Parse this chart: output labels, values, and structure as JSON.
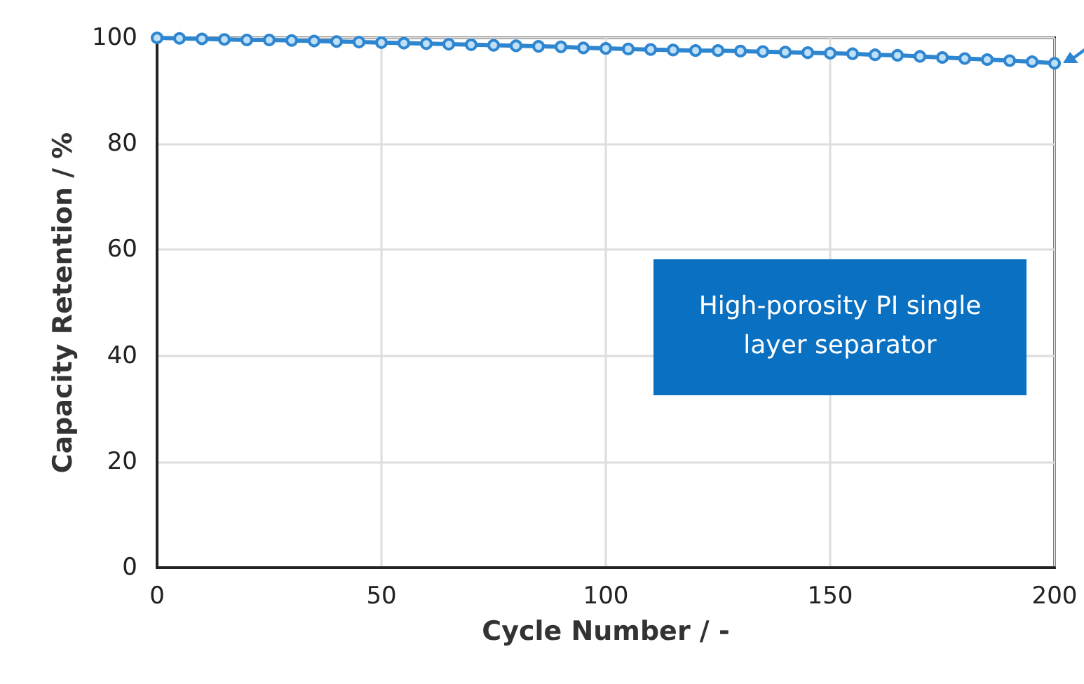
{
  "chart_data": {
    "type": "line",
    "xlabel": "Cycle Number / -",
    "ylabel": "Capacity Retention / %",
    "x": [
      0,
      5,
      10,
      15,
      20,
      25,
      30,
      35,
      40,
      45,
      50,
      55,
      60,
      65,
      70,
      75,
      80,
      85,
      90,
      95,
      100,
      105,
      110,
      115,
      120,
      125,
      130,
      135,
      140,
      145,
      150,
      155,
      160,
      165,
      170,
      175,
      180,
      185,
      190,
      195,
      200
    ],
    "series": [
      {
        "color": "#2f86d0",
        "values": [
          100,
          99.9,
          99.8,
          99.7,
          99.6,
          99.6,
          99.5,
          99.4,
          99.3,
          99.2,
          99.1,
          99.0,
          98.9,
          98.8,
          98.7,
          98.6,
          98.5,
          98.4,
          98.3,
          98.1,
          98.0,
          97.9,
          97.8,
          97.7,
          97.6,
          97.6,
          97.5,
          97.4,
          97.3,
          97.2,
          97.1,
          97.0,
          96.8,
          96.7,
          96.5,
          96.3,
          96.1,
          95.9,
          95.7,
          95.5,
          95.2
        ]
      }
    ],
    "xlim": [
      0,
      200
    ],
    "xticks": [
      0,
      50,
      100,
      150,
      200
    ],
    "ylim": [
      0,
      100
    ],
    "yticks": [
      0,
      20,
      40,
      60,
      80,
      100
    ],
    "grid": true,
    "marker": "circle",
    "line_style": "solid",
    "annotations": [
      "High-porosity PI single layer separator"
    ]
  }
}
